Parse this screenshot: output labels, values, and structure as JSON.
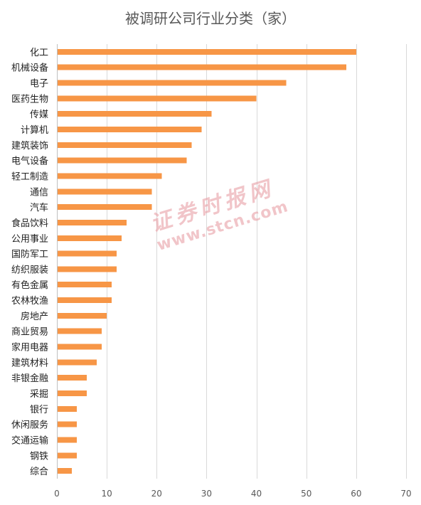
{
  "chart_data": {
    "type": "bar",
    "orientation": "horizontal",
    "title": "被调研公司行业分类（家）",
    "categories": [
      "化工",
      "机械设备",
      "电子",
      "医药生物",
      "传媒",
      "计算机",
      "建筑装饰",
      "电气设备",
      "轻工制造",
      "通信",
      "汽车",
      "食品饮料",
      "公用事业",
      "国防军工",
      "纺织服装",
      "有色金属",
      "农林牧渔",
      "房地产",
      "商业贸易",
      "家用电器",
      "建筑材料",
      "非银金融",
      "采掘",
      "银行",
      "休闲服务",
      "交通运输",
      "钢铁",
      "综合"
    ],
    "values": [
      60,
      58,
      46,
      40,
      31,
      29,
      27,
      26,
      21,
      19,
      19,
      14,
      13,
      12,
      12,
      11,
      11,
      10,
      9,
      9,
      8,
      6,
      6,
      4,
      4,
      4,
      4,
      3
    ],
    "xlim": [
      0,
      70
    ],
    "xticks": [
      "0",
      "10",
      "20",
      "30",
      "40",
      "50",
      "60",
      "70"
    ],
    "grid": true,
    "bar_color": "#f79646"
  },
  "watermark": {
    "text_cn": "证券时报网",
    "text_url": "www.stcn.com"
  }
}
